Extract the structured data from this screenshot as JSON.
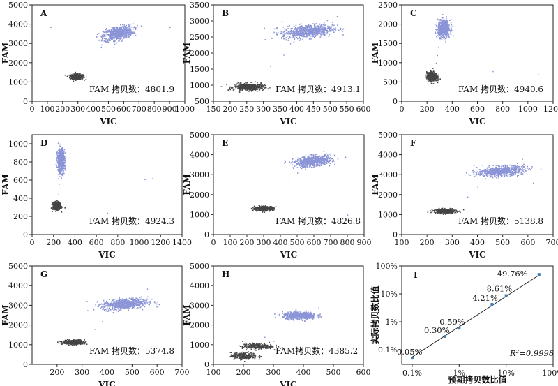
{
  "chart_data": [
    {
      "type": "scatter",
      "panel_label": "A",
      "xlabel": "VIC",
      "ylabel": "FAM",
      "xlim": [
        0,
        1000
      ],
      "ylim": [
        0,
        5000
      ],
      "xticks": [
        0,
        100,
        200,
        300,
        400,
        500,
        600,
        700,
        800,
        900,
        1000
      ],
      "yticks": [
        0,
        1000,
        2000,
        3000,
        4000,
        5000
      ],
      "annotation": "FAM 拷贝数：4801.9",
      "clusters": [
        {
          "name": "negative",
          "color": "#444444",
          "center": [
            290,
            1300
          ],
          "spread": [
            22,
            70
          ],
          "n": 380,
          "tilt": 0.0
        },
        {
          "name": "positive",
          "color": "#8a94d6",
          "center": [
            560,
            3550
          ],
          "spread": [
            48,
            170
          ],
          "n": 650,
          "tilt": 0.45
        }
      ],
      "stray": [
        [
          120,
          3850
        ],
        [
          900,
          3850
        ],
        [
          540,
          3150
        ],
        [
          450,
          2800
        ]
      ]
    },
    {
      "type": "scatter",
      "panel_label": "B",
      "xlabel": "VIC",
      "ylabel": "FAM",
      "xlim": [
        150,
        600
      ],
      "ylim": [
        500,
        3500
      ],
      "xticks": [
        150,
        200,
        250,
        300,
        350,
        400,
        450,
        500,
        550,
        600
      ],
      "yticks": [
        500,
        1000,
        1500,
        2000,
        2500,
        3000,
        3500
      ],
      "annotation": "FAM 拷贝数：4913.1",
      "clusters": [
        {
          "name": "negative",
          "color": "#444444",
          "center": [
            255,
            960
          ],
          "spread": [
            22,
            55
          ],
          "n": 450,
          "tilt": 0.0
        },
        {
          "name": "positive",
          "color": "#8a94d6",
          "center": [
            430,
            2700
          ],
          "spread": [
            38,
            100
          ],
          "n": 700,
          "tilt": 0.35
        }
      ],
      "stray": [
        [
          320,
          1600
        ],
        [
          360,
          1950
        ],
        [
          380,
          2300
        ],
        [
          520,
          3150
        ],
        [
          340,
          2800
        ]
      ]
    },
    {
      "type": "scatter",
      "panel_label": "C",
      "xlabel": "VIC",
      "ylabel": "FAM",
      "xlim": [
        0,
        1200
      ],
      "ylim": [
        0,
        2500
      ],
      "xticks": [
        0,
        200,
        400,
        600,
        800,
        1000,
        1200
      ],
      "yticks": [
        0,
        500,
        1000,
        1500,
        2000,
        2500
      ],
      "annotation": "FAM 拷贝数：4940.6",
      "clusters": [
        {
          "name": "negative",
          "color": "#444444",
          "center": [
            235,
            650
          ],
          "spread": [
            20,
            60
          ],
          "n": 380,
          "tilt": 0.0
        },
        {
          "name": "positive",
          "color": "#8a94d6",
          "center": [
            330,
            1900
          ],
          "spread": [
            24,
            110
          ],
          "n": 600,
          "tilt": 0.0
        }
      ],
      "stray": [
        [
          280,
          1200
        ],
        [
          290,
          1400
        ],
        [
          270,
          1000
        ],
        [
          720,
          780
        ],
        [
          300,
          1600
        ],
        [
          1080,
          700
        ]
      ]
    },
    {
      "type": "scatter",
      "panel_label": "D",
      "xlabel": "VIC",
      "ylabel": "FAM",
      "xlim": [
        0,
        1400
      ],
      "ylim": [
        0,
        1100
      ],
      "xticks": [
        0,
        200,
        400,
        600,
        800,
        1000,
        1200,
        1400
      ],
      "yticks": [
        0,
        200,
        400,
        600,
        800,
        1000
      ],
      "annotation": "FAM 拷贝数：4924.3",
      "clusters": [
        {
          "name": "negative",
          "color": "#444444",
          "center": [
            225,
            320
          ],
          "spread": [
            18,
            22
          ],
          "n": 380,
          "tilt": 0.0
        },
        {
          "name": "positive",
          "color": "#8a94d6",
          "center": [
            265,
            820
          ],
          "spread": [
            18,
            65
          ],
          "n": 600,
          "tilt": 0.0
        }
      ],
      "stray": [
        [
          245,
          450
        ],
        [
          250,
          560
        ],
        [
          240,
          620
        ],
        [
          1120,
          620
        ],
        [
          1050,
          610
        ],
        [
          700,
          240
        ]
      ]
    },
    {
      "type": "scatter",
      "panel_label": "E",
      "xlabel": "VIC",
      "ylabel": "FAM",
      "xlim": [
        0,
        900
      ],
      "ylim": [
        0,
        5000
      ],
      "xticks": [
        0,
        100,
        200,
        300,
        400,
        500,
        600,
        700,
        800,
        900
      ],
      "yticks": [
        0,
        1000,
        2000,
        3000,
        4000,
        5000
      ],
      "annotation": "FAM 拷贝数：4826.8",
      "clusters": [
        {
          "name": "negative",
          "color": "#444444",
          "center": [
            300,
            1330
          ],
          "spread": [
            28,
            55
          ],
          "n": 380,
          "tilt": 0.0
        },
        {
          "name": "positive",
          "color": "#8a94d6",
          "center": [
            590,
            3700
          ],
          "spread": [
            55,
            130
          ],
          "n": 650,
          "tilt": 0.35
        }
      ],
      "stray": [
        [
          450,
          2800
        ],
        [
          500,
          3100
        ],
        [
          800,
          1000
        ],
        [
          720,
          4000
        ]
      ]
    },
    {
      "type": "scatter",
      "panel_label": "F",
      "xlabel": "VIC",
      "ylabel": "FAM",
      "xlim": [
        100,
        700
      ],
      "ylim": [
        0,
        5000
      ],
      "xticks": [
        100,
        200,
        300,
        400,
        500,
        600,
        700
      ],
      "yticks": [
        0,
        1000,
        2000,
        3000,
        4000,
        5000
      ],
      "annotation": "FAM 拷贝数：5138.8",
      "clusters": [
        {
          "name": "negative",
          "color": "#444444",
          "center": [
            270,
            1200
          ],
          "spread": [
            22,
            55
          ],
          "n": 380,
          "tilt": 0.0
        },
        {
          "name": "positive",
          "color": "#8a94d6",
          "center": [
            490,
            3200
          ],
          "spread": [
            45,
            120
          ],
          "n": 650,
          "tilt": 0.35
        }
      ],
      "stray": [
        [
          360,
          1900
        ],
        [
          400,
          2400
        ],
        [
          650,
          3300
        ],
        [
          620,
          2600
        ]
      ]
    },
    {
      "type": "scatter",
      "panel_label": "G",
      "xlabel": "VIC",
      "ylabel": "FAM",
      "xlim": [
        100,
        700
      ],
      "ylim": [
        0,
        5000
      ],
      "xticks": [
        200,
        300,
        400,
        500,
        600,
        700
      ],
      "yticks": [
        0,
        1000,
        2000,
        3000,
        4000,
        5000
      ],
      "annotation": "FAM 拷贝数：5374.8",
      "clusters": [
        {
          "name": "negative",
          "color": "#444444",
          "center": [
            265,
            1150
          ],
          "spread": [
            22,
            60
          ],
          "n": 380,
          "tilt": 0.0
        },
        {
          "name": "positive",
          "color": "#8a94d6",
          "center": [
            470,
            3100
          ],
          "spread": [
            45,
            130
          ],
          "n": 650,
          "tilt": 0.35
        }
      ],
      "stray": [
        [
          350,
          1800
        ],
        [
          380,
          2200
        ],
        [
          560,
          3850
        ],
        [
          540,
          2800
        ]
      ]
    },
    {
      "type": "scatter",
      "panel_label": "H",
      "xlabel": "VIC",
      "ylabel": "FAM",
      "xlim": [
        100,
        600
      ],
      "ylim": [
        0,
        5000
      ],
      "xticks": [
        100,
        200,
        300,
        400,
        500,
        600
      ],
      "yticks": [
        0,
        1000,
        2000,
        3000,
        4000,
        5000
      ],
      "annotation": "FAM拷贝数：4385.2",
      "clusters": [
        {
          "name": "negative",
          "color": "#444444",
          "center": [
            245,
            950
          ],
          "spread": [
            25,
            70
          ],
          "n": 260,
          "tilt": 0.0
        },
        {
          "name": "negative-low",
          "color": "#444444",
          "center": [
            200,
            450
          ],
          "spread": [
            22,
            90
          ],
          "n": 220,
          "tilt": 0.0
        },
        {
          "name": "positive",
          "color": "#8a94d6",
          "center": [
            385,
            2500
          ],
          "spread": [
            28,
            90
          ],
          "n": 500,
          "tilt": 0.0
        }
      ],
      "stray": [
        [
          300,
          1200
        ],
        [
          270,
          1400
        ],
        [
          560,
          3900
        ],
        [
          450,
          2900
        ]
      ]
    },
    {
      "type": "line",
      "panel_label": "I",
      "xlabel": "预期拷贝数比值",
      "ylabel": "实际拷贝数比值",
      "xscale": "log",
      "yscale": "log",
      "xlim": [
        0.06,
        100
      ],
      "ylim": [
        0.03,
        100
      ],
      "xticks": [
        "0.1%",
        "1%",
        "10%",
        "100%"
      ],
      "xtick_values": [
        0.1,
        1,
        10,
        100
      ],
      "yticks": [
        "0.1%",
        "1%",
        "10%",
        "100%"
      ],
      "ytick_values": [
        0.1,
        1,
        10,
        100
      ],
      "points": [
        {
          "x": 0.1,
          "y": 0.05,
          "label": "0.05%"
        },
        {
          "x": 0.5,
          "y": 0.3,
          "label": "0.30%"
        },
        {
          "x": 1,
          "y": 0.59,
          "label": "0.59%"
        },
        {
          "x": 5,
          "y": 4.21,
          "label": "4.21%"
        },
        {
          "x": 10,
          "y": 8.61,
          "label": "8.61%"
        },
        {
          "x": 50,
          "y": 49.76,
          "label": "49.76%"
        }
      ],
      "fit": {
        "x": [
          0.1,
          55
        ],
        "y": [
          0.055,
          52
        ]
      },
      "r2_label": "R²=0.9998",
      "colors": {
        "point": "#3f7fb5",
        "line": "#222222"
      }
    }
  ]
}
